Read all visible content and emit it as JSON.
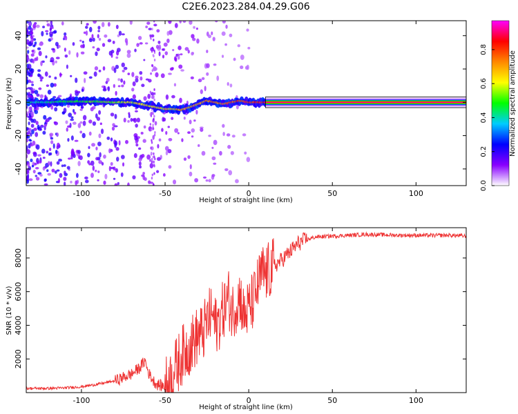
{
  "figure": {
    "title": "C2E6.2023.284.04.29.G06"
  },
  "chart_data": [
    {
      "type": "heatmap",
      "title": "C2E6.2023.284.04.29.G06",
      "xlabel": "Height of straight line (km)",
      "ylabel": "Frequency (Hz)",
      "xlim": [
        -133,
        130
      ],
      "ylim": [
        -50,
        49
      ],
      "xticks": [
        -100,
        -50,
        0,
        50,
        100
      ],
      "yticks": [
        -40,
        -20,
        0,
        20,
        40
      ],
      "grid": false,
      "ridge": {
        "description_values_x_km": [
          -133,
          -120,
          -110,
          -100,
          -90,
          -80,
          -70,
          -60,
          -55,
          -50,
          -45,
          -40,
          -35,
          -30,
          -25,
          -20,
          -15,
          -10,
          -5,
          0,
          5,
          10,
          20,
          50,
          100,
          130
        ],
        "frequency_hz": [
          0,
          0,
          0.5,
          0.5,
          0.5,
          0,
          0,
          -2,
          -3,
          -4,
          -4,
          -4.5,
          -3,
          -1,
          1,
          0,
          -1,
          0,
          1,
          0,
          0,
          0,
          0,
          0,
          0,
          0
        ]
      },
      "colorbar": {
        "label": "Normalized spectral amplitude",
        "range": [
          0,
          0.97
        ],
        "ticks": [
          0.0,
          0.2,
          0.4,
          0.6,
          0.8
        ],
        "colors": [
          "#ffffff",
          "#8800ff",
          "#0000ff",
          "#00ccff",
          "#00ff00",
          "#ffff00",
          "#ff8800",
          "#ff0000",
          "#ff00ff"
        ]
      }
    },
    {
      "type": "line",
      "xlabel": "Height of straight line (km)",
      "ylabel": "SNR (10 * v/v)",
      "xlim": [
        -133,
        130
      ],
      "ylim": [
        0,
        9800
      ],
      "xticks": [
        -100,
        -50,
        0,
        50,
        100
      ],
      "yticks": [
        2000,
        4000,
        6000,
        8000
      ],
      "grid": false,
      "series": [
        {
          "color": "#ee3333",
          "x": [
            -133,
            -120,
            -110,
            -100,
            -90,
            -80,
            -75,
            -70,
            -65,
            -62,
            -60,
            -57,
            -55,
            -52,
            -50,
            -48,
            -45,
            -42,
            -40,
            -37,
            -35,
            -32,
            -30,
            -27,
            -25,
            -22,
            -20,
            -18,
            -15,
            -12,
            -10,
            -8,
            -5,
            -3,
            0,
            3,
            5,
            8,
            10,
            12,
            15,
            20,
            25,
            30,
            35,
            40,
            50,
            60,
            70,
            80,
            90,
            100,
            110,
            120,
            130
          ],
          "y": [
            250,
            250,
            280,
            350,
            500,
            700,
            900,
            1100,
            1500,
            1900,
            1200,
            700,
            500,
            400,
            400,
            600,
            1200,
            1800,
            2200,
            2600,
            2800,
            3200,
            3400,
            3600,
            4200,
            4700,
            4000,
            4200,
            5000,
            5600,
            4800,
            5200,
            5800,
            4500,
            5000,
            5500,
            6200,
            7100,
            7000,
            7200,
            7500,
            7900,
            8400,
            8900,
            9100,
            9250,
            9300,
            9350,
            9400,
            9380,
            9350,
            9350,
            9340,
            9350,
            9300
          ]
        }
      ]
    }
  ]
}
